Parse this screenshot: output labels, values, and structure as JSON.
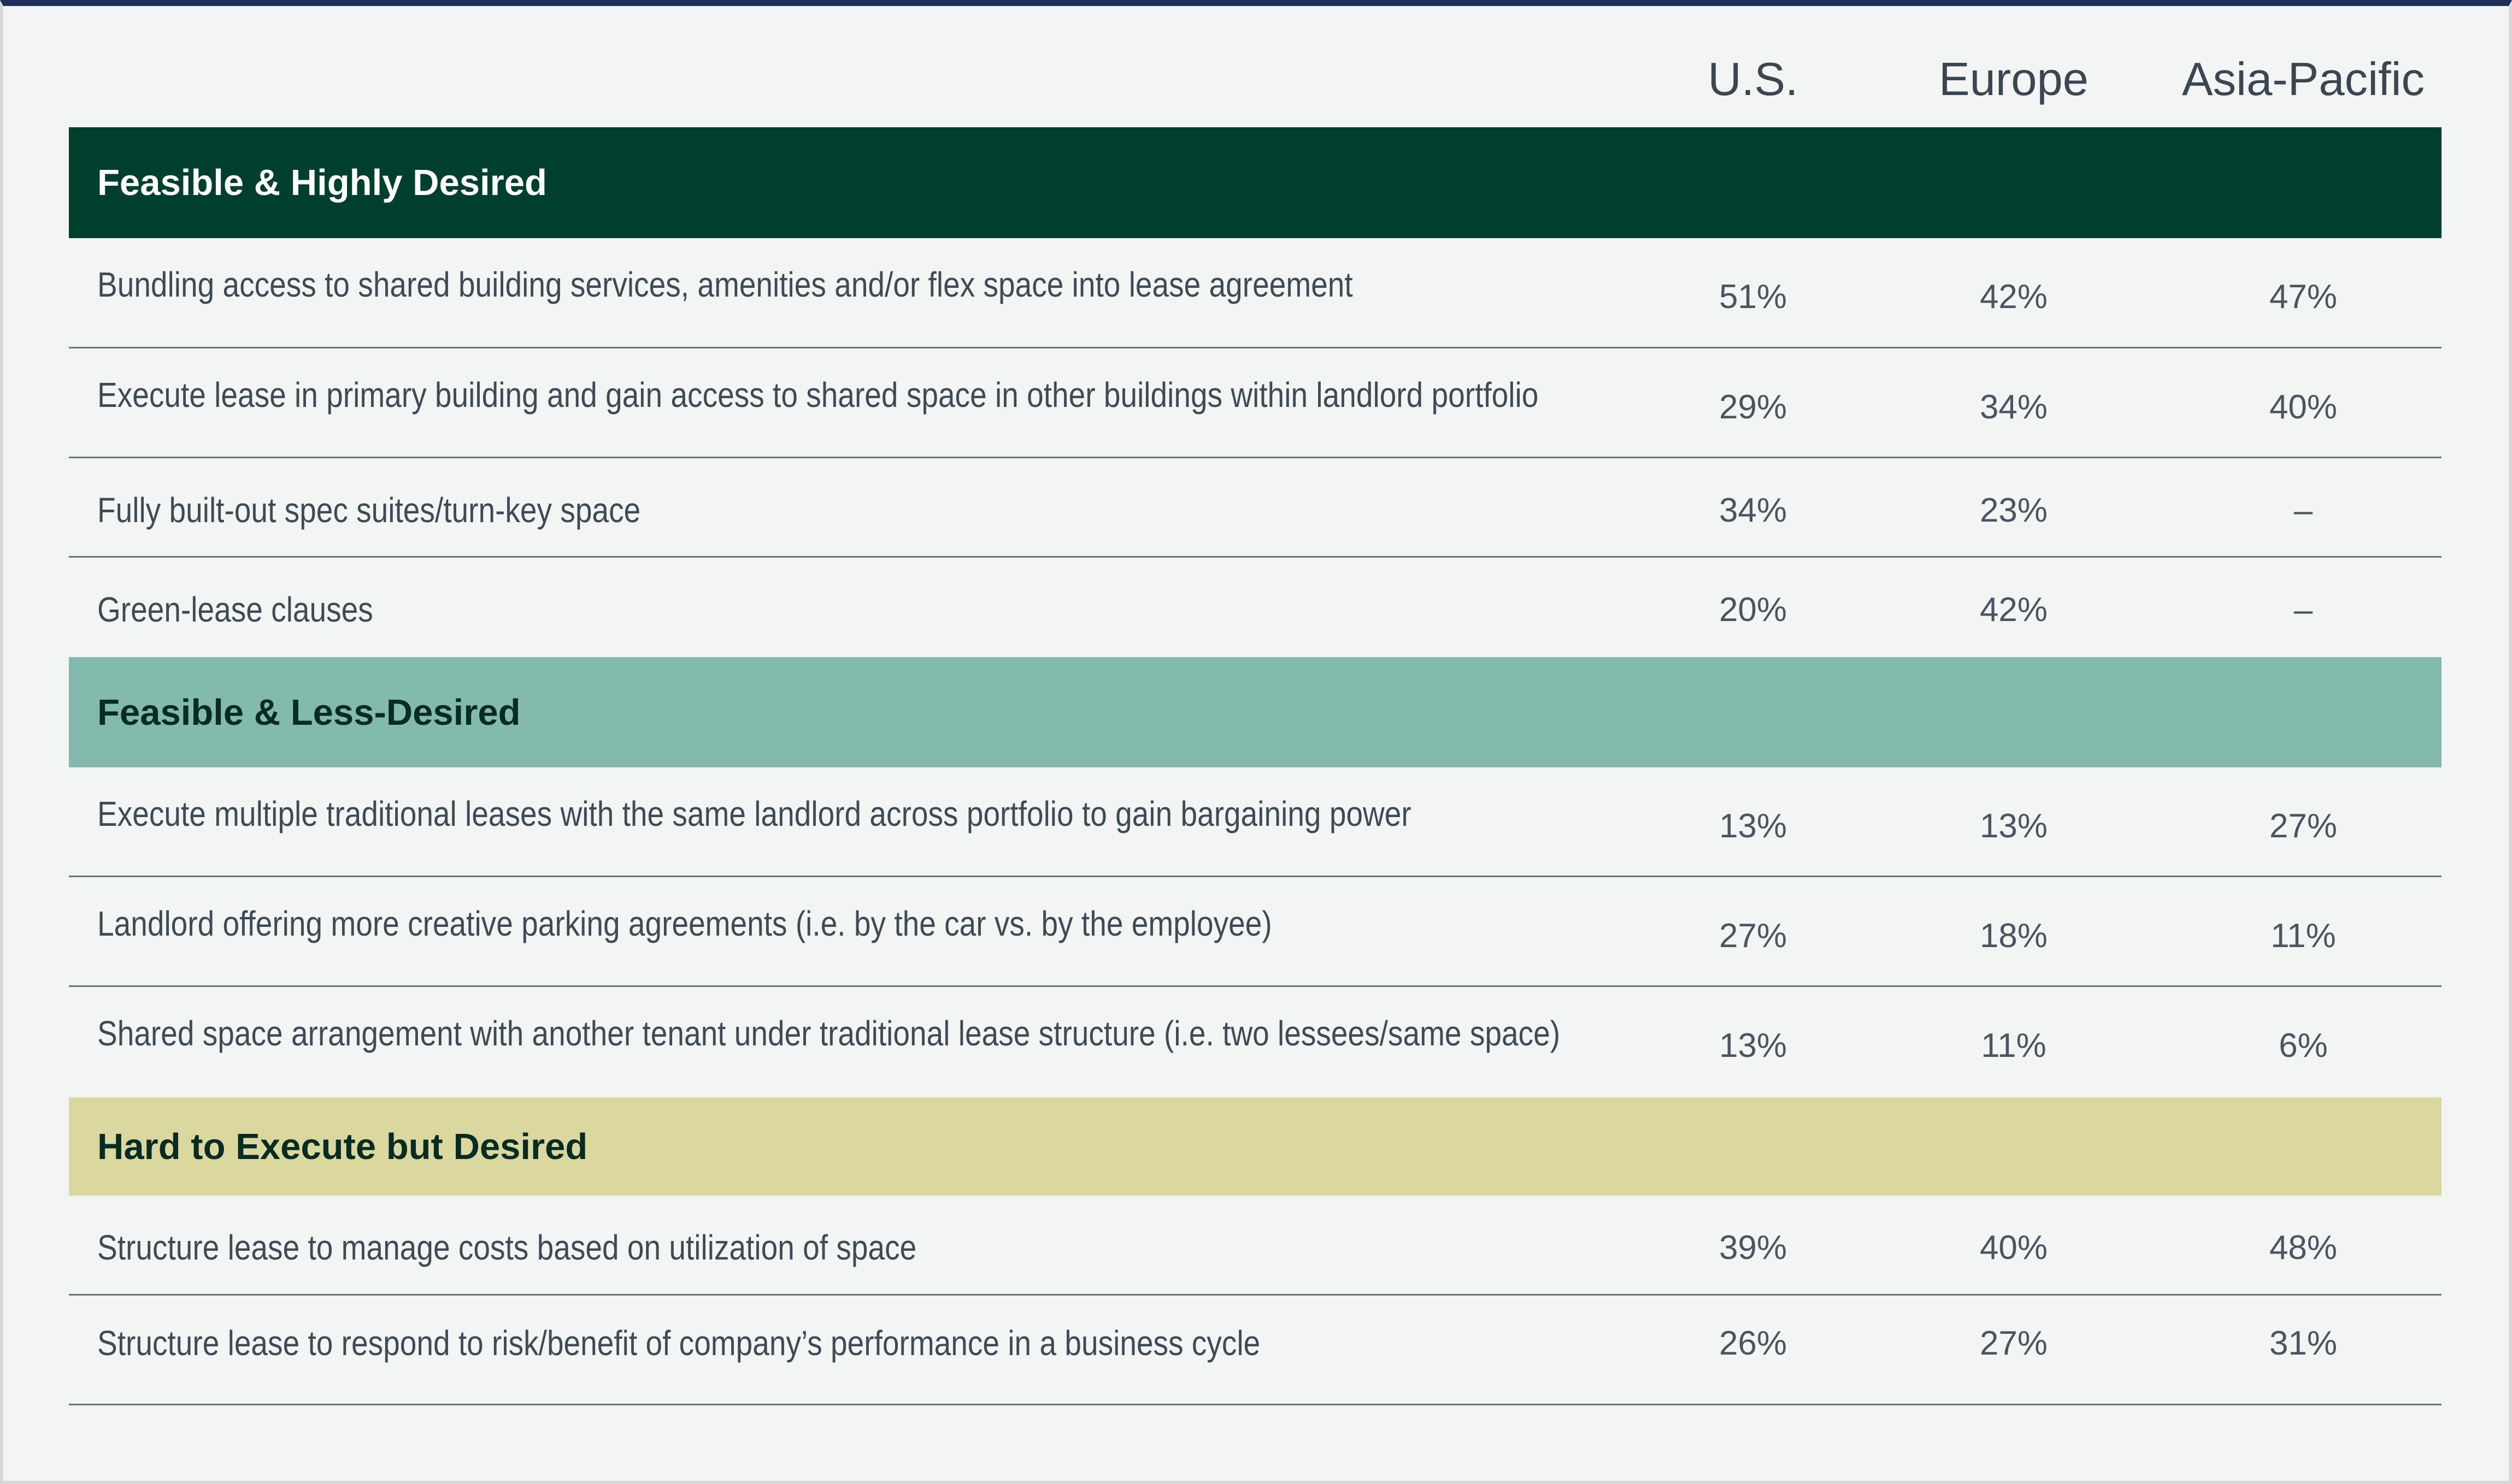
{
  "chart_data": {
    "type": "table",
    "columns": [
      "U.S.",
      "Europe",
      "Asia-Pacific"
    ],
    "colors": {
      "top_rule": "#1e2f5c",
      "highly_desired": "#003f2e",
      "less_desired": "#82bbad",
      "hard_desired": "#dad89e"
    },
    "groups": [
      {
        "title": "Feasible & Highly Desired",
        "rows": [
          {
            "label": "Bundling access to shared building services, amenities and/or flex space into lease agreement",
            "values": [
              "51%",
              "42%",
              "47%"
            ]
          },
          {
            "label": "Execute lease in primary building and gain access to shared space in other buildings within landlord portfolio",
            "values": [
              "29%",
              "34%",
              "40%"
            ]
          },
          {
            "label": "Fully built-out spec suites/turn-key space",
            "values": [
              "34%",
              "23%",
              "–"
            ]
          },
          {
            "label": "Green-lease clauses",
            "values": [
              "20%",
              "42%",
              "–"
            ]
          }
        ]
      },
      {
        "title": "Feasible & Less-Desired",
        "rows": [
          {
            "label": "Execute multiple traditional leases with the same landlord across portfolio to gain bargaining power",
            "values": [
              "13%",
              "13%",
              "27%"
            ]
          },
          {
            "label": "Landlord offering more creative parking agreements (i.e. by the car vs. by the employee)",
            "values": [
              "27%",
              "18%",
              "11%"
            ]
          },
          {
            "label": "Shared space arrangement with another tenant under traditional lease structure (i.e. two lessees/same space)",
            "values": [
              "13%",
              "11%",
              "6%"
            ]
          }
        ]
      },
      {
        "title": "Hard to Execute but Desired",
        "rows": [
          {
            "label": "Structure lease to manage costs based on utilization of space",
            "values": [
              "39%",
              "40%",
              "48%"
            ]
          },
          {
            "label": "Structure lease to respond to risk/benefit of company’s performance in a business cycle",
            "values": [
              "26%",
              "27%",
              "31%"
            ]
          }
        ]
      }
    ]
  }
}
